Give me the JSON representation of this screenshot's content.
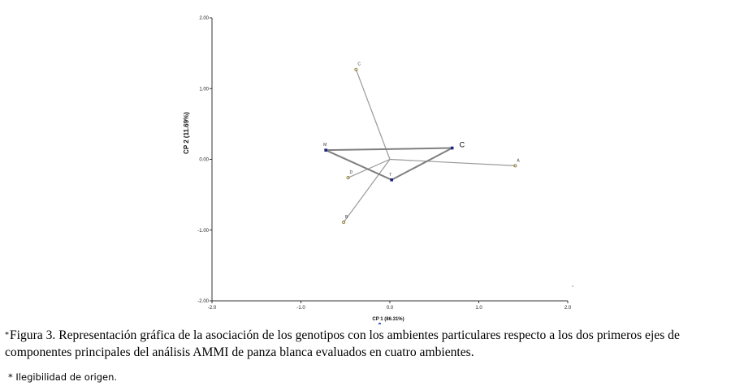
{
  "chart_data": {
    "type": "scatter",
    "xlabel": "CP 1 (86.31%)",
    "ylabel": "CP 2 (11.69%)",
    "xlim": [
      -2.0,
      2.0
    ],
    "ylim": [
      -2.0,
      2.0
    ],
    "x_ticks": [
      "-2.0",
      "-1.0",
      "0.0",
      "1.0",
      "2.0"
    ],
    "y_ticks": [
      "2.00",
      "1.00",
      "0.00",
      "-1.00",
      "-2.00"
    ],
    "grid": false,
    "origin_arrows": [
      {
        "label": "C",
        "x": -0.38,
        "y": 1.27
      },
      {
        "label": "A",
        "x": 1.41,
        "y": -0.09
      },
      {
        "label": "D",
        "x": -0.47,
        "y": -0.26
      },
      {
        "label": "B",
        "x": -0.52,
        "y": -0.89
      }
    ],
    "environments": [
      {
        "label": "M",
        "x": -0.72,
        "y": 0.13
      },
      {
        "label": "T",
        "x": 0.02,
        "y": -0.29
      },
      {
        "label": "C",
        "x": 0.7,
        "y": 0.16
      }
    ],
    "environment_connections": [
      [
        0,
        2
      ],
      [
        0,
        1
      ],
      [
        1,
        2
      ]
    ],
    "colors": {
      "vector": "#9a9a9a",
      "env_line": "#808080",
      "marker_env": "#1a237e",
      "marker_geno": "#8a7a2a"
    }
  },
  "caption": {
    "star": "*",
    "text": "Figura 3.  Representación gráfica de la asociación de los genotipos con los  ambientes particulares respecto a los dos primeros ejes de componentes principales del análisis AMMI de panza blanca evaluados en cuatro ambientes.",
    "note": "* Ilegibilidad de origen."
  }
}
